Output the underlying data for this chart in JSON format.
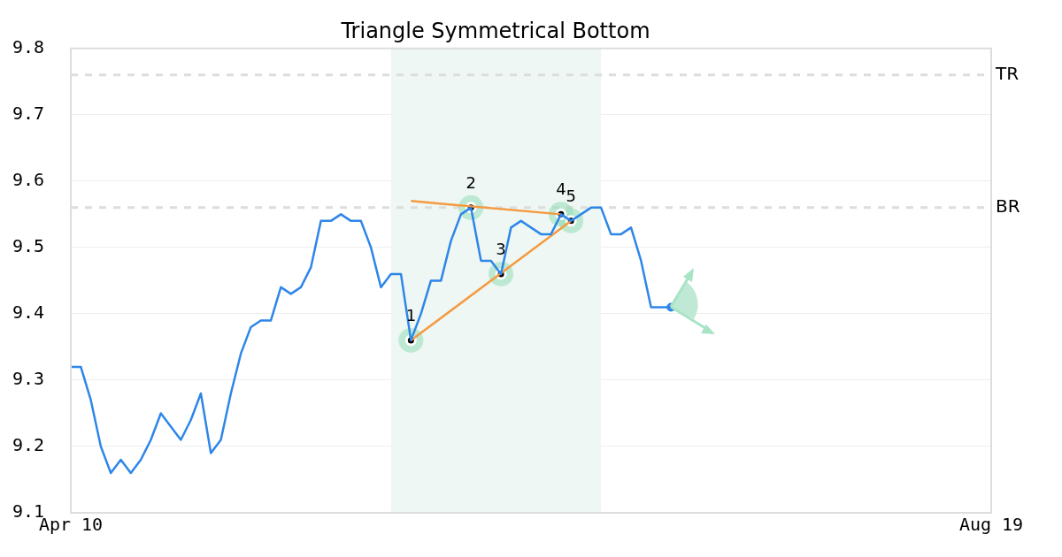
{
  "chart_data": {
    "type": "line",
    "title": "Triangle Symmetrical Bottom",
    "categories": [
      "Apr 10",
      null,
      null,
      null,
      null,
      null,
      null,
      null,
      null,
      null,
      null,
      null,
      null,
      null,
      null,
      null,
      null,
      null,
      null,
      null,
      null,
      null,
      null,
      null,
      null,
      null,
      null,
      null,
      null,
      null,
      null,
      null,
      null,
      null,
      null,
      null,
      null,
      null,
      null,
      null,
      null,
      null,
      null,
      null,
      null,
      null,
      null,
      null,
      null,
      null,
      null,
      null,
      null,
      null,
      null,
      null,
      null,
      null,
      null,
      null,
      null,
      null,
      null,
      null,
      null,
      null,
      null,
      null,
      null,
      null,
      null,
      null,
      null,
      null,
      null,
      null,
      null,
      null,
      null,
      null,
      null,
      null,
      null,
      null,
      null,
      null,
      null,
      null,
      null,
      null,
      null,
      null,
      "Aug 19"
    ],
    "ylim": [
      9.1,
      9.8
    ],
    "yticks": [
      9.1,
      9.2,
      9.3,
      9.4,
      9.5,
      9.6,
      9.7,
      9.8
    ],
    "grid": "y",
    "legend": false,
    "series": [
      {
        "marker": "none",
        "color": "#2e86e8",
        "values": [
          9.32,
          9.32,
          9.27,
          9.2,
          9.16,
          9.18,
          9.16,
          9.18,
          9.21,
          9.25,
          9.23,
          9.21,
          9.24,
          9.28,
          9.19,
          9.21,
          9.28,
          9.34,
          9.38,
          9.39,
          9.39,
          9.44,
          9.43,
          9.44,
          9.47,
          9.54,
          9.54,
          9.55,
          9.54,
          9.54,
          9.5,
          9.44,
          9.46,
          9.46,
          9.36,
          9.4,
          9.45,
          9.45,
          9.51,
          9.55,
          9.56,
          9.48,
          9.48,
          9.46,
          9.53,
          9.54,
          9.53,
          9.52,
          9.52,
          9.55,
          9.54,
          9.55,
          9.56,
          9.56,
          9.52,
          9.52,
          9.53,
          9.48,
          9.41,
          9.41,
          9.41,
          null,
          null,
          null,
          null,
          null,
          null,
          null,
          null,
          null,
          null,
          null,
          null,
          null,
          null,
          null,
          null,
          null,
          null,
          null,
          null,
          null,
          null,
          null,
          null,
          null,
          null,
          null,
          null,
          null,
          null,
          null,
          null
        ]
      },
      {
        "color": "#f59a40",
        "values": [
          null,
          null,
          null,
          null,
          null,
          null,
          null,
          null,
          null,
          null,
          null,
          null,
          null,
          null,
          null,
          null,
          null,
          null,
          null,
          null,
          null,
          null,
          null,
          null,
          null,
          null,
          null,
          null,
          null,
          null,
          null,
          null,
          null,
          null,
          9.57,
          null,
          null,
          null,
          null,
          null,
          null,
          null,
          null,
          null,
          null,
          null,
          null,
          null,
          null,
          9.55,
          null,
          null,
          null,
          null,
          null,
          null,
          null,
          null,
          null,
          null,
          null,
          null,
          null,
          null,
          null,
          null,
          null,
          null,
          null,
          null,
          null,
          null,
          null,
          null,
          null,
          null,
          null,
          null,
          null,
          null,
          null,
          null,
          null,
          null,
          null,
          null,
          null,
          null,
          null,
          null,
          null,
          null,
          null
        ]
      },
      {
        "color": "#f59a40",
        "values": [
          null,
          null,
          null,
          null,
          null,
          null,
          null,
          null,
          null,
          null,
          null,
          null,
          null,
          null,
          null,
          null,
          null,
          null,
          null,
          null,
          null,
          null,
          null,
          null,
          null,
          null,
          null,
          null,
          null,
          null,
          null,
          null,
          null,
          null,
          9.36,
          null,
          null,
          null,
          null,
          null,
          null,
          null,
          null,
          null,
          null,
          null,
          null,
          null,
          null,
          null,
          9.54,
          null,
          null,
          null,
          null,
          null,
          null,
          null,
          null,
          null,
          null,
          null,
          null,
          null,
          null,
          null,
          null,
          null,
          null,
          null,
          null,
          null,
          null,
          null,
          null,
          null,
          null,
          null,
          null,
          null,
          null,
          null,
          null,
          null,
          null,
          null,
          null,
          null,
          null,
          null,
          null,
          null,
          null
        ]
      },
      {
        "type": "scatter",
        "name": "1",
        "marker": "circle",
        "color": "#000000",
        "values": [
          null,
          null,
          null,
          null,
          null,
          null,
          null,
          null,
          null,
          null,
          null,
          null,
          null,
          null,
          null,
          null,
          null,
          null,
          null,
          null,
          null,
          null,
          null,
          null,
          null,
          null,
          null,
          null,
          null,
          null,
          null,
          null,
          null,
          null,
          9.36,
          null,
          null,
          null,
          null,
          null,
          null,
          null,
          null,
          null,
          null,
          null,
          null,
          null,
          null,
          null,
          null,
          null,
          null,
          null,
          null,
          null,
          null,
          null,
          null,
          null,
          null,
          null,
          null,
          null,
          null,
          null,
          null,
          null,
          null,
          null,
          null,
          null,
          null,
          null,
          null,
          null,
          null,
          null,
          null,
          null,
          null,
          null,
          null,
          null,
          null,
          null,
          null,
          null,
          null,
          null,
          null,
          null,
          null
        ]
      },
      {
        "type": "scatter",
        "name": "2",
        "marker": "circle",
        "color": "#000000",
        "values": [
          null,
          null,
          null,
          null,
          null,
          null,
          null,
          null,
          null,
          null,
          null,
          null,
          null,
          null,
          null,
          null,
          null,
          null,
          null,
          null,
          null,
          null,
          null,
          null,
          null,
          null,
          null,
          null,
          null,
          null,
          null,
          null,
          null,
          null,
          null,
          null,
          null,
          null,
          null,
          null,
          9.56,
          null,
          null,
          null,
          null,
          null,
          null,
          null,
          null,
          null,
          null,
          null,
          null,
          null,
          null,
          null,
          null,
          null,
          null,
          null,
          null,
          null,
          null,
          null,
          null,
          null,
          null,
          null,
          null,
          null,
          null,
          null,
          null,
          null,
          null,
          null,
          null,
          null,
          null,
          null,
          null,
          null,
          null,
          null,
          null,
          null,
          null,
          null,
          null,
          null,
          null,
          null,
          null
        ]
      },
      {
        "type": "scatter",
        "name": "3",
        "marker": "circle",
        "color": "#000000",
        "values": [
          null,
          null,
          null,
          null,
          null,
          null,
          null,
          null,
          null,
          null,
          null,
          null,
          null,
          null,
          null,
          null,
          null,
          null,
          null,
          null,
          null,
          null,
          null,
          null,
          null,
          null,
          null,
          null,
          null,
          null,
          null,
          null,
          null,
          null,
          null,
          null,
          null,
          null,
          null,
          null,
          null,
          null,
          null,
          9.46,
          null,
          null,
          null,
          null,
          null,
          null,
          null,
          null,
          null,
          null,
          null,
          null,
          null,
          null,
          null,
          null,
          null,
          null,
          null,
          null,
          null,
          null,
          null,
          null,
          null,
          null,
          null,
          null,
          null,
          null,
          null,
          null,
          null,
          null,
          null,
          null,
          null,
          null,
          null,
          null,
          null,
          null,
          null,
          null,
          null,
          null,
          null,
          null,
          null
        ]
      },
      {
        "type": "scatter",
        "name": "4",
        "marker": "circle",
        "color": "#000000",
        "values": [
          null,
          null,
          null,
          null,
          null,
          null,
          null,
          null,
          null,
          null,
          null,
          null,
          null,
          null,
          null,
          null,
          null,
          null,
          null,
          null,
          null,
          null,
          null,
          null,
          null,
          null,
          null,
          null,
          null,
          null,
          null,
          null,
          null,
          null,
          null,
          null,
          null,
          null,
          null,
          null,
          null,
          null,
          null,
          null,
          null,
          null,
          null,
          null,
          null,
          9.55,
          null,
          null,
          null,
          null,
          null,
          null,
          null,
          null,
          null,
          null,
          null,
          null,
          null,
          null,
          null,
          null,
          null,
          null,
          null,
          null,
          null,
          null,
          null,
          null,
          null,
          null,
          null,
          null,
          null,
          null,
          null,
          null,
          null,
          null,
          null,
          null,
          null,
          null,
          null,
          null,
          null,
          null,
          null
        ]
      },
      {
        "type": "scatter",
        "name": "5",
        "marker": "circle",
        "color": "#000000",
        "values": [
          null,
          null,
          null,
          null,
          null,
          null,
          null,
          null,
          null,
          null,
          null,
          null,
          null,
          null,
          null,
          null,
          null,
          null,
          null,
          null,
          null,
          null,
          null,
          null,
          null,
          null,
          null,
          null,
          null,
          null,
          null,
          null,
          null,
          null,
          null,
          null,
          null,
          null,
          null,
          null,
          null,
          null,
          null,
          null,
          null,
          null,
          null,
          null,
          null,
          null,
          9.54,
          null,
          null,
          null,
          null,
          null,
          null,
          null,
          null,
          null,
          null,
          null,
          null,
          null,
          null,
          null,
          null,
          null,
          null,
          null,
          null,
          null,
          null,
          null,
          null,
          null,
          null,
          null,
          null,
          null,
          null,
          null,
          null,
          null,
          null,
          null,
          null,
          null,
          null,
          null,
          null,
          null,
          null
        ]
      },
      {
        "type": "scatter",
        "marker": "circle",
        "color": "#2e86e8",
        "values": [
          null,
          null,
          null,
          null,
          null,
          null,
          null,
          null,
          null,
          null,
          null,
          null,
          null,
          null,
          null,
          null,
          null,
          null,
          null,
          null,
          null,
          null,
          null,
          null,
          null,
          null,
          null,
          null,
          null,
          null,
          null,
          null,
          null,
          null,
          null,
          null,
          null,
          null,
          null,
          null,
          null,
          null,
          null,
          null,
          null,
          null,
          null,
          null,
          null,
          null,
          null,
          null,
          null,
          null,
          null,
          null,
          null,
          null,
          null,
          null,
          9.41,
          null,
          null,
          null,
          null,
          null,
          null,
          null,
          null,
          null,
          null,
          null,
          null,
          null,
          null,
          null,
          null,
          null,
          null,
          null,
          null,
          null,
          null,
          null,
          null,
          null,
          null,
          null,
          null,
          null,
          null,
          null,
          null
        ]
      }
    ],
    "ref_lines": [
      {
        "axis": "y",
        "value": 9.76,
        "label": "TR",
        "color": "#dddddd",
        "line_style": "dashed"
      },
      {
        "axis": "y",
        "value": 9.56,
        "label": "BR",
        "color": "#dddddd",
        "line_style": "dashed"
      }
    ]
  }
}
